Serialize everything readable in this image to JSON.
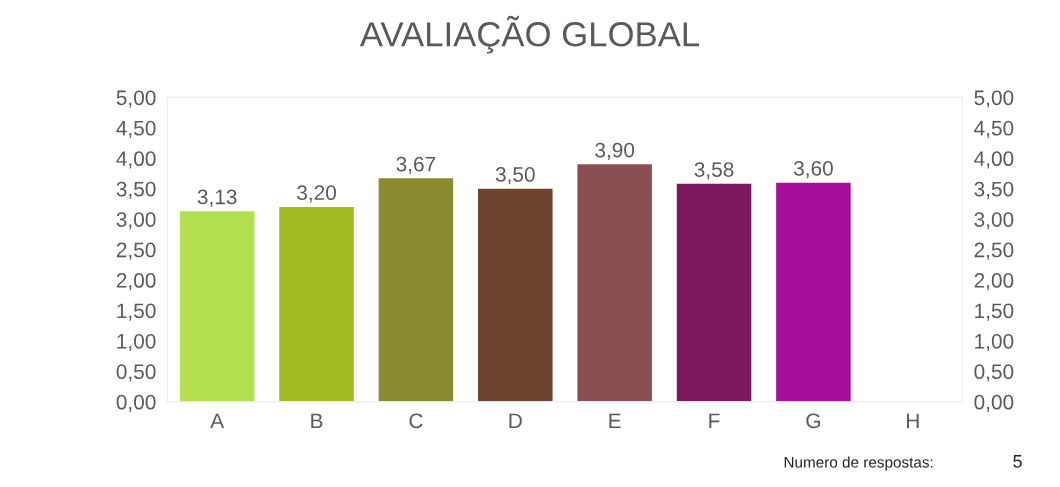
{
  "chart_data": {
    "type": "bar",
    "title": "AVALIAÇÃO GLOBAL",
    "categories": [
      "A",
      "B",
      "C",
      "D",
      "E",
      "F",
      "G",
      "H"
    ],
    "values": [
      3.13,
      3.2,
      3.67,
      3.5,
      3.9,
      3.58,
      3.6,
      null
    ],
    "value_labels": [
      "3,13",
      "3,20",
      "3,67",
      "3,50",
      "3,90",
      "3,58",
      "3,60",
      null
    ],
    "colors": [
      "#b3e04f",
      "#a2bb22",
      "#8a8a33",
      "#6e4430",
      "#8a4f52",
      "#7b1860",
      "#a60d9a",
      "#888888"
    ],
    "ylim": [
      0,
      5
    ],
    "yticks": [
      {
        "value": 0,
        "label": "0,00"
      },
      {
        "value": 0.5,
        "label": "0,50"
      },
      {
        "value": 1,
        "label": "1,00"
      },
      {
        "value": 1.5,
        "label": "1,50"
      },
      {
        "value": 2,
        "label": "2,00"
      },
      {
        "value": 2.5,
        "label": "2,50"
      },
      {
        "value": 3,
        "label": "3,00"
      },
      {
        "value": 3.5,
        "label": "3,50"
      },
      {
        "value": 4,
        "label": "4,00"
      },
      {
        "value": 4.5,
        "label": "4,50"
      },
      {
        "value": 5,
        "label": "5,00"
      }
    ],
    "y2lim": [
      0,
      5
    ],
    "y2ticks": [
      {
        "value": 0,
        "label": "0,00"
      },
      {
        "value": 0.5,
        "label": "0,50"
      },
      {
        "value": 1,
        "label": "1,00"
      },
      {
        "value": 1.5,
        "label": "1,50"
      },
      {
        "value": 2,
        "label": "2,00"
      },
      {
        "value": 2.5,
        "label": "2,50"
      },
      {
        "value": 3,
        "label": "3,00"
      },
      {
        "value": 3.5,
        "label": "3,50"
      },
      {
        "value": 4,
        "label": "4,00"
      },
      {
        "value": 4.5,
        "label": "4,50"
      },
      {
        "value": 5,
        "label": "5,00"
      }
    ],
    "grid": false,
    "annotations": [
      "Numero de respostas:",
      "5"
    ]
  }
}
